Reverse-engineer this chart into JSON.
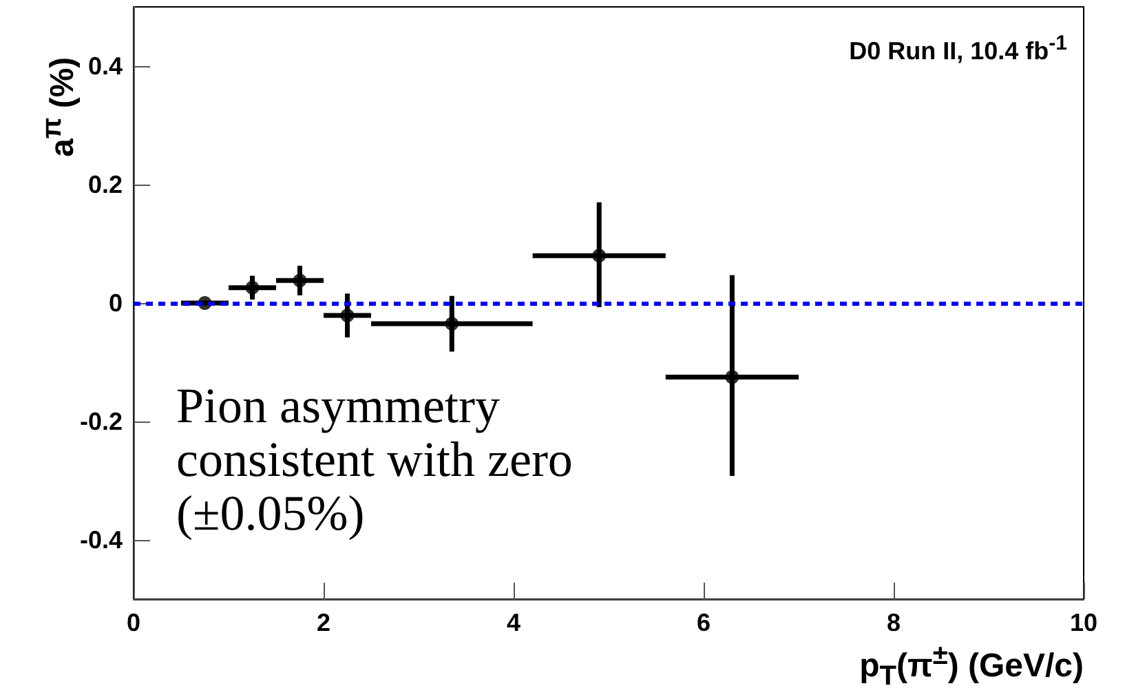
{
  "chart_data": {
    "type": "scatter",
    "title": "D0 Run II, 10.4 fb$^{-1}$",
    "xlabel": "p$_{T}$(π$^{±}$)   (GeV/c)",
    "ylabel": "a$^{π}$  (%)",
    "annotations": [
      "Pion asymmetry\nconsistent with zero\n(±0.05%)"
    ],
    "xlim": [
      0,
      10
    ],
    "xticks": [
      0,
      2,
      4,
      6,
      8,
      10
    ],
    "ylim": [
      -0.5,
      0.5
    ],
    "yticks": [
      -0.4,
      -0.2,
      0,
      0.2,
      0.4
    ],
    "grid": false,
    "marker": "circle",
    "series": [
      {
        "color": "#000000",
        "x": [
          0.75,
          1.25,
          1.75,
          2.25,
          3.35,
          4.9,
          6.3
        ],
        "values": [
          0,
          0.026,
          0.038,
          -0.021,
          -0.035,
          0.08,
          -0.125
        ],
        "errors": [
          0.004,
          0.02,
          0.025,
          0.037,
          0.047,
          [
            -0.007,
            0.17
          ],
          [
            -0.292,
            0.047
          ]
        ],
        "xerrors": [
          [
            0.5,
            1.0
          ],
          [
            1.0,
            1.5
          ],
          [
            1.5,
            2.0
          ],
          [
            2.0,
            2.5
          ],
          [
            2.5,
            4.2
          ],
          [
            4.2,
            5.6
          ],
          [
            5.6,
            7.0
          ]
        ]
      }
    ],
    "ref_lines": [
      {
        "axis": "y",
        "value": 0,
        "color": "#0000ff",
        "line_style": "dashed"
      }
    ]
  }
}
